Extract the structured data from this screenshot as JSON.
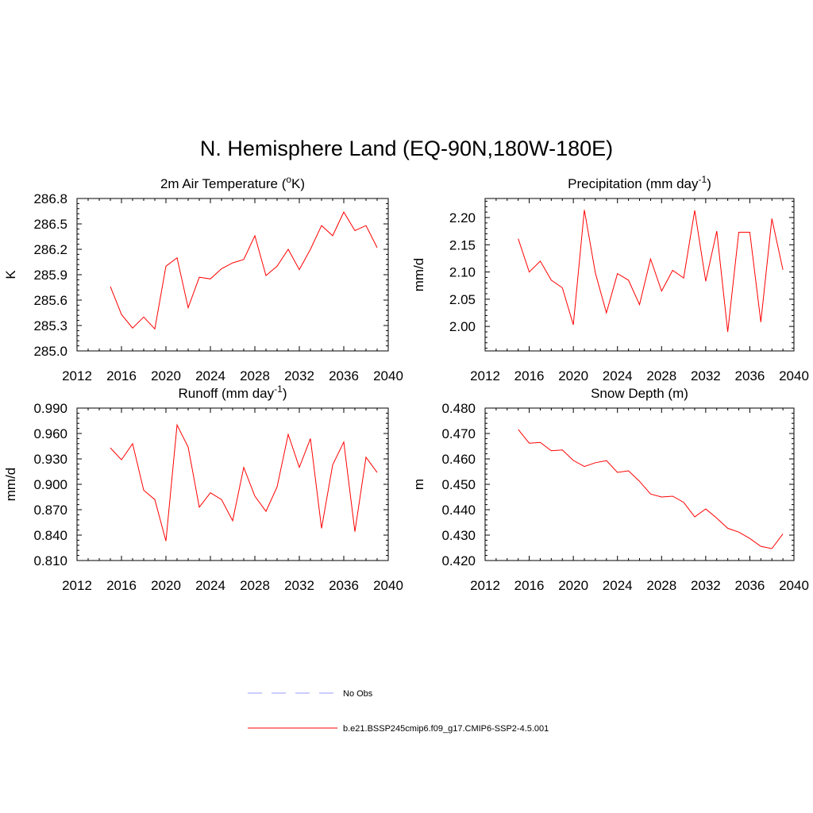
{
  "main_title": "N. Hemisphere Land (EQ-90N,180W-180E)",
  "colors": {
    "series": "#ff0000",
    "obs": "#9999ff",
    "axis": "#000000"
  },
  "legend": {
    "entries": [
      {
        "label": "No Obs",
        "style": "dashed",
        "color": "#9999ff"
      },
      {
        "label": "b.e21.BSSP245cmip6.f09_g17.CMIP6-SSP2-4.5.001",
        "style": "solid",
        "color": "#ff0000"
      }
    ]
  },
  "chart_data": [
    {
      "type": "line",
      "title": "2m Air Temperature (",
      "title_sup": "o",
      "title_after": "K)",
      "xlabel": "",
      "ylabel": "K",
      "xlim": [
        2012,
        2040
      ],
      "ylim": [
        285.0,
        286.8
      ],
      "xticks": [
        2012,
        2016,
        2020,
        2024,
        2028,
        2032,
        2036,
        2040
      ],
      "yticks": [
        "285.0",
        "285.3",
        "285.6",
        "285.9",
        "286.2",
        "286.5",
        "286.8"
      ],
      "series": [
        {
          "x": [
            2015,
            2016,
            2017,
            2018,
            2019,
            2020,
            2021,
            2022,
            2023,
            2024,
            2025,
            2026,
            2027,
            2028,
            2029,
            2030,
            2031,
            2032,
            2033,
            2034,
            2035,
            2036,
            2037,
            2038,
            2039
          ],
          "values": [
            285.76,
            285.43,
            285.27,
            285.4,
            285.26,
            286.0,
            286.1,
            285.51,
            285.87,
            285.85,
            285.97,
            286.04,
            286.08,
            286.36,
            285.89,
            286.0,
            286.2,
            285.96,
            286.2,
            286.48,
            286.36,
            286.64,
            286.42,
            286.48,
            286.22
          ]
        }
      ]
    },
    {
      "type": "line",
      "title": "Precipitation (mm day",
      "title_sup": "-1",
      "title_after": ")",
      "xlabel": "",
      "ylabel": "mm/d",
      "xlim": [
        2012,
        2040
      ],
      "ylim": [
        1.955,
        2.235
      ],
      "xticks": [
        2012,
        2016,
        2020,
        2024,
        2028,
        2032,
        2036,
        2040
      ],
      "yticks": [
        "2.00",
        "2.05",
        "2.10",
        "2.15",
        "2.20"
      ],
      "series": [
        {
          "x": [
            2015,
            2016,
            2017,
            2018,
            2019,
            2020,
            2021,
            2022,
            2023,
            2024,
            2025,
            2026,
            2027,
            2028,
            2029,
            2030,
            2031,
            2032,
            2033,
            2034,
            2035,
            2036,
            2037,
            2038,
            2039
          ],
          "values": [
            2.161,
            2.1,
            2.12,
            2.085,
            2.071,
            2.003,
            2.214,
            2.098,
            2.025,
            2.097,
            2.085,
            2.04,
            2.124,
            2.065,
            2.103,
            2.089,
            2.213,
            2.083,
            2.175,
            1.99,
            2.173,
            2.173,
            2.008,
            2.198,
            2.104
          ]
        }
      ]
    },
    {
      "type": "line",
      "title": "Runoff (mm day",
      "title_sup": "-1",
      "title_after": ")",
      "xlabel": "",
      "ylabel": "mm/d",
      "xlim": [
        2012,
        2040
      ],
      "ylim": [
        0.81,
        0.99
      ],
      "xticks": [
        2012,
        2016,
        2020,
        2024,
        2028,
        2032,
        2036,
        2040
      ],
      "yticks": [
        "0.810",
        "0.840",
        "0.870",
        "0.900",
        "0.930",
        "0.960",
        "0.990"
      ],
      "series": [
        {
          "x": [
            2015,
            2016,
            2017,
            2018,
            2019,
            2020,
            2021,
            2022,
            2023,
            2024,
            2025,
            2026,
            2027,
            2028,
            2029,
            2030,
            2031,
            2032,
            2033,
            2034,
            2035,
            2036,
            2037,
            2038,
            2039
          ],
          "values": [
            0.943,
            0.929,
            0.948,
            0.893,
            0.882,
            0.833,
            0.97,
            0.944,
            0.873,
            0.89,
            0.882,
            0.857,
            0.92,
            0.886,
            0.868,
            0.897,
            0.959,
            0.92,
            0.954,
            0.848,
            0.923,
            0.95,
            0.844,
            0.932,
            0.914
          ]
        }
      ]
    },
    {
      "type": "line",
      "title": "Snow Depth (m)",
      "title_sup": "",
      "title_after": "",
      "xlabel": "",
      "ylabel": "m",
      "xlim": [
        2012,
        2040
      ],
      "ylim": [
        0.42,
        0.48
      ],
      "xticks": [
        2012,
        2016,
        2020,
        2024,
        2028,
        2032,
        2036,
        2040
      ],
      "yticks": [
        "0.420",
        "0.430",
        "0.440",
        "0.450",
        "0.460",
        "0.470",
        "0.480"
      ],
      "series": [
        {
          "x": [
            2015,
            2016,
            2017,
            2018,
            2019,
            2020,
            2021,
            2022,
            2023,
            2024,
            2025,
            2026,
            2027,
            2028,
            2029,
            2030,
            2031,
            2032,
            2033,
            2034,
            2035,
            2036,
            2037,
            2038,
            2039
          ],
          "values": [
            0.4716,
            0.4662,
            0.4665,
            0.4632,
            0.4635,
            0.4594,
            0.457,
            0.4585,
            0.4593,
            0.4547,
            0.4553,
            0.4512,
            0.4462,
            0.445,
            0.4453,
            0.4429,
            0.4372,
            0.4403,
            0.4367,
            0.4327,
            0.4312,
            0.4287,
            0.4256,
            0.4247,
            0.4305
          ]
        }
      ]
    }
  ]
}
